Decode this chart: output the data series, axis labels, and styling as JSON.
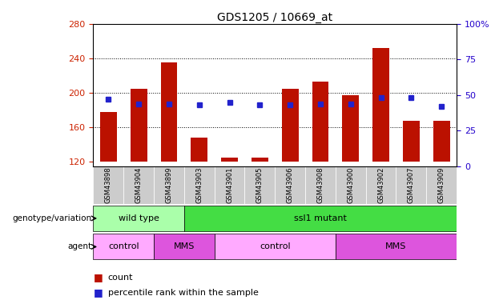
{
  "title": "GDS1205 / 10669_at",
  "samples": [
    "GSM43898",
    "GSM43904",
    "GSM43899",
    "GSM43903",
    "GSM43901",
    "GSM43905",
    "GSM43906",
    "GSM43908",
    "GSM43900",
    "GSM43902",
    "GSM43907",
    "GSM43909"
  ],
  "count_values": [
    178,
    205,
    235,
    148,
    125,
    125,
    205,
    213,
    197,
    252,
    168,
    168
  ],
  "percentile_values": [
    47,
    44,
    44,
    43,
    45,
    43,
    43,
    44,
    44,
    48,
    48,
    42
  ],
  "ylim_left": [
    115,
    280
  ],
  "ylim_right": [
    0,
    100
  ],
  "yticks_left": [
    120,
    160,
    200,
    240,
    280
  ],
  "yticks_right": [
    0,
    25,
    50,
    75,
    100
  ],
  "yticklabels_right": [
    "0",
    "25",
    "50",
    "75",
    "100%"
  ],
  "bar_color": "#bb1100",
  "dot_color": "#2222cc",
  "bar_bottom": 120,
  "grid_color": "#000000",
  "genotype_groups": [
    {
      "label": "wild type",
      "start": 0,
      "end": 3,
      "color": "#aaffaa"
    },
    {
      "label": "ssl1 mutant",
      "start": 3,
      "end": 12,
      "color": "#44dd44"
    }
  ],
  "agent_groups": [
    {
      "label": "control",
      "start": 0,
      "end": 2,
      "color": "#ffaaff"
    },
    {
      "label": "MMS",
      "start": 2,
      "end": 4,
      "color": "#dd55dd"
    },
    {
      "label": "control",
      "start": 4,
      "end": 8,
      "color": "#ffaaff"
    },
    {
      "label": "MMS",
      "start": 8,
      "end": 12,
      "color": "#dd55dd"
    }
  ],
  "legend_count_color": "#bb1100",
  "legend_pct_color": "#2222cc",
  "left_label_color": "#000000",
  "xlabel_color": "#cc2200",
  "ylabel_right_color": "#2200cc",
  "tick_label_bg": "#dddddd"
}
